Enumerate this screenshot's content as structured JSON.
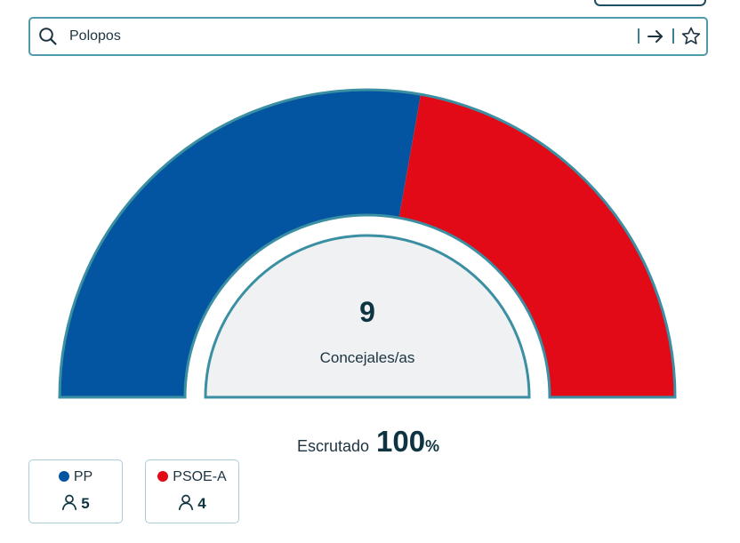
{
  "search": {
    "value": "Polopos",
    "icons": {
      "search": "search-icon",
      "go": "arrow-right-icon",
      "favorite": "star-icon"
    }
  },
  "chart_data": {
    "type": "hemicycle",
    "total_seats": 9,
    "total_label": "Concejales/as",
    "series": [
      {
        "name": "PP",
        "value": 5,
        "color": "#0455a1"
      },
      {
        "name": "PSOE-A",
        "value": 4,
        "color": "#e20a17"
      }
    ]
  },
  "scrutiny": {
    "label": "Escrutado",
    "value": "100",
    "unit": "%"
  },
  "parties": [
    {
      "name": "PP",
      "seats": "5",
      "color": "#0455a1"
    },
    {
      "name": "PSOE-A",
      "seats": "4",
      "color": "#e20a17"
    }
  ],
  "colors": {
    "outline": "#3b8fa3",
    "inner_fill": "#eff1f2",
    "text_dark": "#0f3441"
  }
}
